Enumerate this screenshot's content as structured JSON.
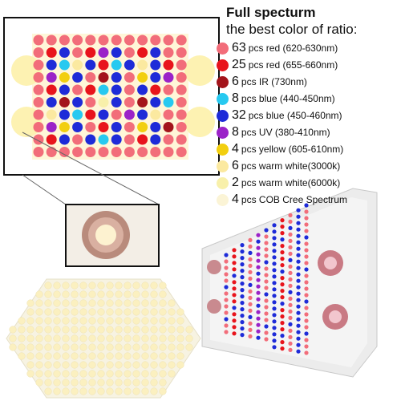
{
  "legend": {
    "title": "Full specturm",
    "subtitle": "the best color of ratio:",
    "items": [
      {
        "count": "63",
        "label": "pcs red (620-630nm)",
        "color": "#f26d7a"
      },
      {
        "count": "25",
        "label": "pcs red (655-660nm)",
        "color": "#e8141c"
      },
      {
        "count": "6",
        "label": "pcs IR (730nm)",
        "color": "#a3141b"
      },
      {
        "count": "8",
        "label": "pcs blue (440-450nm)",
        "color": "#27c9f0"
      },
      {
        "count": "32",
        "label": "pcs blue (450-460nm)",
        "color": "#1e2bd8"
      },
      {
        "count": "8",
        "label": "pcs UV (380-410nm)",
        "color": "#9b22c8"
      },
      {
        "count": "4",
        "label": "pcs yellow (605-610nm)",
        "color": "#f2cf10"
      },
      {
        "count": "6",
        "label": "pcs warm white(3000k)",
        "color": "#fbe9a0"
      },
      {
        "count": "2",
        "label": "pcs warm white(6000k)",
        "color": "#f8f0aa"
      },
      {
        "count": "4",
        "label": "pcs COB Cree Spectrum",
        "color": "#fbf4d6"
      }
    ]
  },
  "colors": {
    "panel_frame": "#111111",
    "cob_light": "#fdf2b2",
    "board_bg": "#fff6d8",
    "hex_bg": "#f7f3e2",
    "hex_dot": "#fbf0c0",
    "cob_ring": "#b98b7c",
    "device_body": "#ececec"
  }
}
